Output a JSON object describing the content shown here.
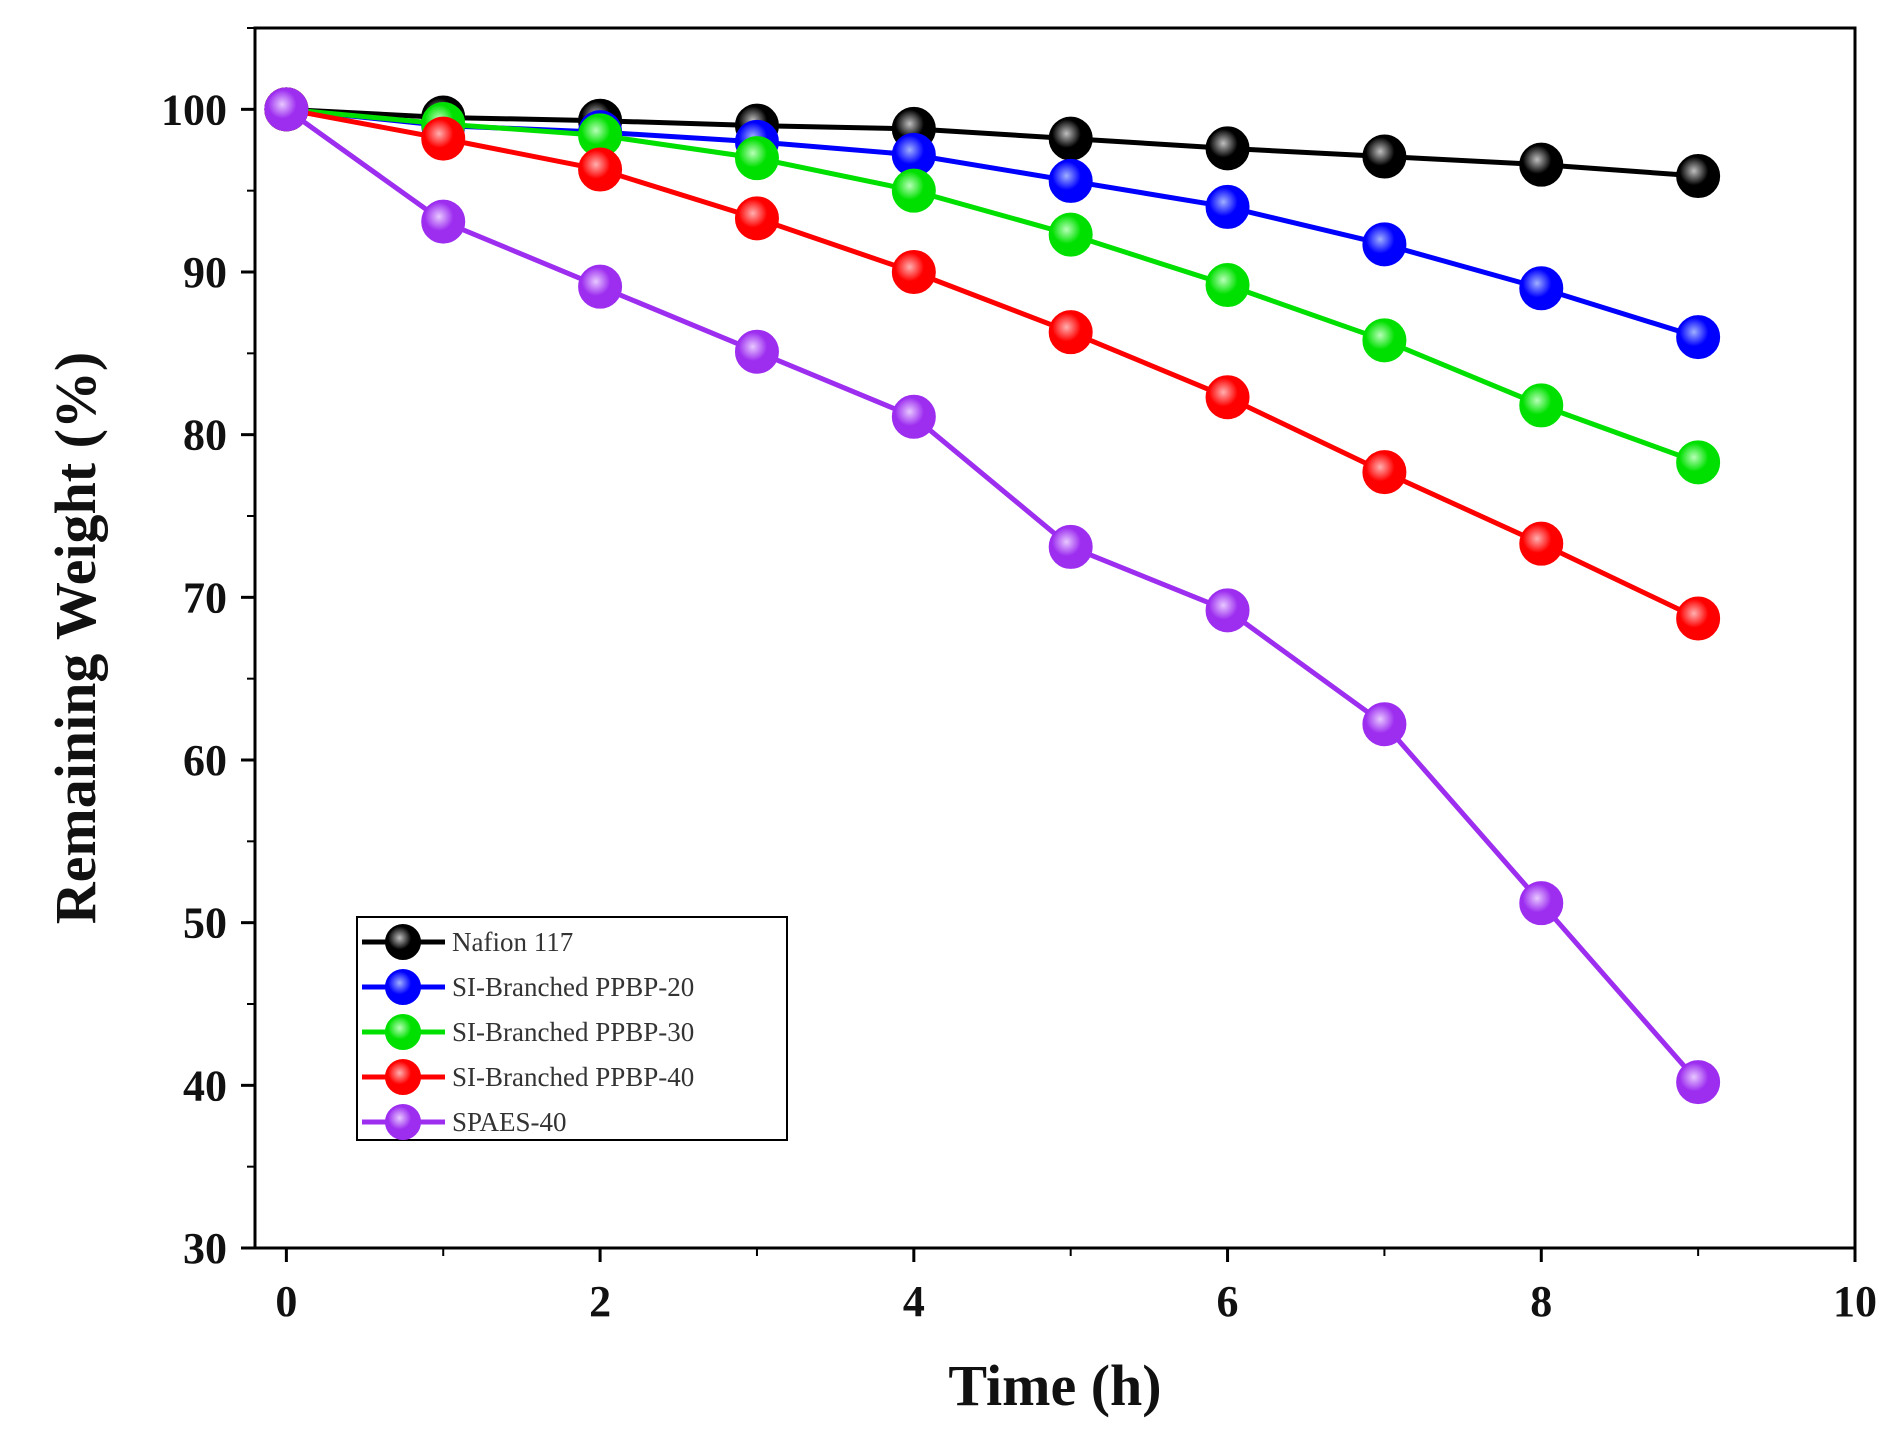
{
  "chart_data": {
    "type": "line",
    "title": "",
    "xlabel": "Time (h)",
    "ylabel": "Remaining Weight (%)",
    "xlim": [
      -0.2,
      10
    ],
    "ylim": [
      30,
      105
    ],
    "xticks": [
      0,
      2,
      4,
      6,
      8,
      10
    ],
    "yticks": [
      30,
      40,
      50,
      60,
      70,
      80,
      90,
      100
    ],
    "grid": false,
    "legend_position": "lower-left",
    "x": [
      0,
      1,
      2,
      3,
      4,
      5,
      6,
      7,
      8,
      9
    ],
    "series": [
      {
        "name": "Nafion 117",
        "color": "#000000",
        "highlight": "#bfbfbf",
        "values": [
          100,
          99.5,
          99.3,
          99.0,
          98.8,
          98.2,
          97.6,
          97.1,
          96.6,
          95.9
        ]
      },
      {
        "name": "SI-Branched PPBP-20",
        "color": "#0000ff",
        "highlight": "#9fb0ff",
        "values": [
          100,
          99.0,
          98.6,
          98.0,
          97.2,
          95.6,
          94.0,
          91.7,
          89.0,
          86.0
        ]
      },
      {
        "name": "SI-Branched PPBP-30",
        "color": "#00e000",
        "highlight": "#b8ffb8",
        "values": [
          100,
          99.1,
          98.4,
          97.0,
          95.0,
          92.3,
          89.2,
          85.8,
          81.8,
          78.3
        ]
      },
      {
        "name": "SI-Branched PPBP-40",
        "color": "#ff0000",
        "highlight": "#ffb0b0",
        "values": [
          100,
          98.2,
          96.3,
          93.3,
          90.0,
          86.3,
          82.3,
          77.7,
          73.3,
          68.7
        ]
      },
      {
        "name": "SPAES-40",
        "color": "#9d2ef0",
        "highlight": "#e7c8ff",
        "values": [
          100,
          93.1,
          89.1,
          85.1,
          81.1,
          73.1,
          69.2,
          62.2,
          51.2,
          40.2
        ]
      }
    ]
  }
}
